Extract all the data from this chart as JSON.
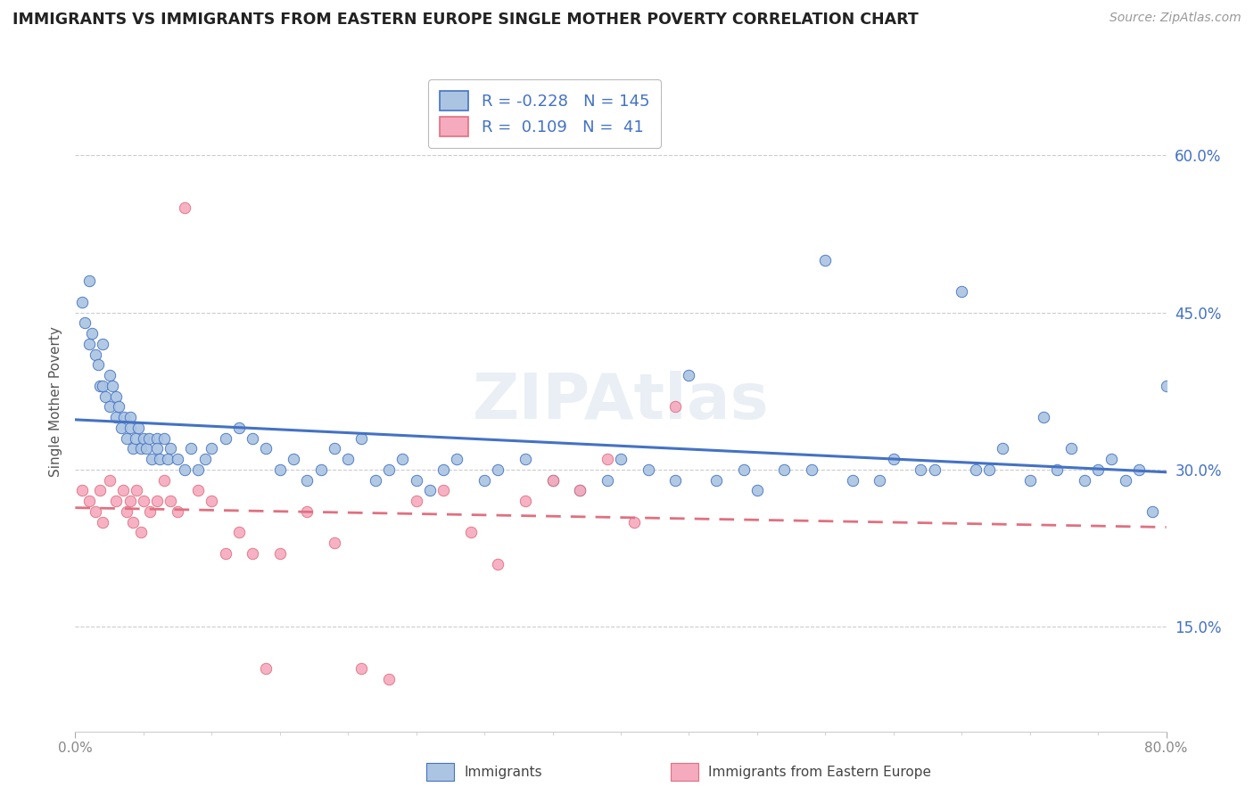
{
  "title": "IMMIGRANTS VS IMMIGRANTS FROM EASTERN EUROPE SINGLE MOTHER POVERTY CORRELATION CHART",
  "source": "Source: ZipAtlas.com",
  "ylabel": "Single Mother Poverty",
  "ytick_vals": [
    0.15,
    0.3,
    0.45,
    0.6
  ],
  "xlim": [
    0.0,
    0.8
  ],
  "ylim": [
    0.05,
    0.68
  ],
  "legend_blue_R": "-0.228",
  "legend_blue_N": "145",
  "legend_pink_R": "0.109",
  "legend_pink_N": "41",
  "scatter_blue_color": "#aac4e2",
  "scatter_pink_color": "#f5aabe",
  "line_blue_color": "#4472c4",
  "line_pink_color": "#e07080",
  "background_color": "#ffffff",
  "grid_color": "#cccccc",
  "watermark_color": "#dce5f0",
  "blue_x": [
    0.005,
    0.007,
    0.01,
    0.01,
    0.012,
    0.015,
    0.017,
    0.018,
    0.02,
    0.02,
    0.022,
    0.025,
    0.025,
    0.027,
    0.03,
    0.03,
    0.032,
    0.034,
    0.036,
    0.038,
    0.04,
    0.04,
    0.042,
    0.044,
    0.046,
    0.048,
    0.05,
    0.052,
    0.054,
    0.056,
    0.06,
    0.06,
    0.062,
    0.065,
    0.068,
    0.07,
    0.075,
    0.08,
    0.085,
    0.09,
    0.095,
    0.1,
    0.11,
    0.12,
    0.13,
    0.14,
    0.15,
    0.16,
    0.17,
    0.18,
    0.19,
    0.2,
    0.21,
    0.22,
    0.23,
    0.24,
    0.25,
    0.26,
    0.27,
    0.28,
    0.3,
    0.31,
    0.33,
    0.35,
    0.37,
    0.39,
    0.4,
    0.42,
    0.44,
    0.45,
    0.47,
    0.49,
    0.5,
    0.52,
    0.54,
    0.55,
    0.57,
    0.59,
    0.6,
    0.62,
    0.63,
    0.65,
    0.66,
    0.67,
    0.68,
    0.7,
    0.71,
    0.72,
    0.73,
    0.74,
    0.75,
    0.76,
    0.77,
    0.78,
    0.79,
    0.8
  ],
  "blue_y": [
    0.46,
    0.44,
    0.48,
    0.42,
    0.43,
    0.41,
    0.4,
    0.38,
    0.42,
    0.38,
    0.37,
    0.39,
    0.36,
    0.38,
    0.37,
    0.35,
    0.36,
    0.34,
    0.35,
    0.33,
    0.35,
    0.34,
    0.32,
    0.33,
    0.34,
    0.32,
    0.33,
    0.32,
    0.33,
    0.31,
    0.33,
    0.32,
    0.31,
    0.33,
    0.31,
    0.32,
    0.31,
    0.3,
    0.32,
    0.3,
    0.31,
    0.32,
    0.33,
    0.34,
    0.33,
    0.32,
    0.3,
    0.31,
    0.29,
    0.3,
    0.32,
    0.31,
    0.33,
    0.29,
    0.3,
    0.31,
    0.29,
    0.28,
    0.3,
    0.31,
    0.29,
    0.3,
    0.31,
    0.29,
    0.28,
    0.29,
    0.31,
    0.3,
    0.29,
    0.39,
    0.29,
    0.3,
    0.28,
    0.3,
    0.3,
    0.5,
    0.29,
    0.29,
    0.31,
    0.3,
    0.3,
    0.47,
    0.3,
    0.3,
    0.32,
    0.29,
    0.35,
    0.3,
    0.32,
    0.29,
    0.3,
    0.31,
    0.29,
    0.3,
    0.26,
    0.38
  ],
  "pink_x": [
    0.005,
    0.01,
    0.015,
    0.018,
    0.02,
    0.025,
    0.03,
    0.035,
    0.038,
    0.04,
    0.042,
    0.045,
    0.048,
    0.05,
    0.055,
    0.06,
    0.065,
    0.07,
    0.075,
    0.08,
    0.09,
    0.1,
    0.11,
    0.12,
    0.13,
    0.14,
    0.15,
    0.17,
    0.19,
    0.21,
    0.23,
    0.25,
    0.27,
    0.29,
    0.31,
    0.33,
    0.35,
    0.37,
    0.39,
    0.41,
    0.44
  ],
  "pink_y": [
    0.28,
    0.27,
    0.26,
    0.28,
    0.25,
    0.29,
    0.27,
    0.28,
    0.26,
    0.27,
    0.25,
    0.28,
    0.24,
    0.27,
    0.26,
    0.27,
    0.29,
    0.27,
    0.26,
    0.55,
    0.28,
    0.27,
    0.22,
    0.24,
    0.22,
    0.11,
    0.22,
    0.26,
    0.23,
    0.11,
    0.1,
    0.27,
    0.28,
    0.24,
    0.21,
    0.27,
    0.29,
    0.28,
    0.31,
    0.25,
    0.36
  ]
}
